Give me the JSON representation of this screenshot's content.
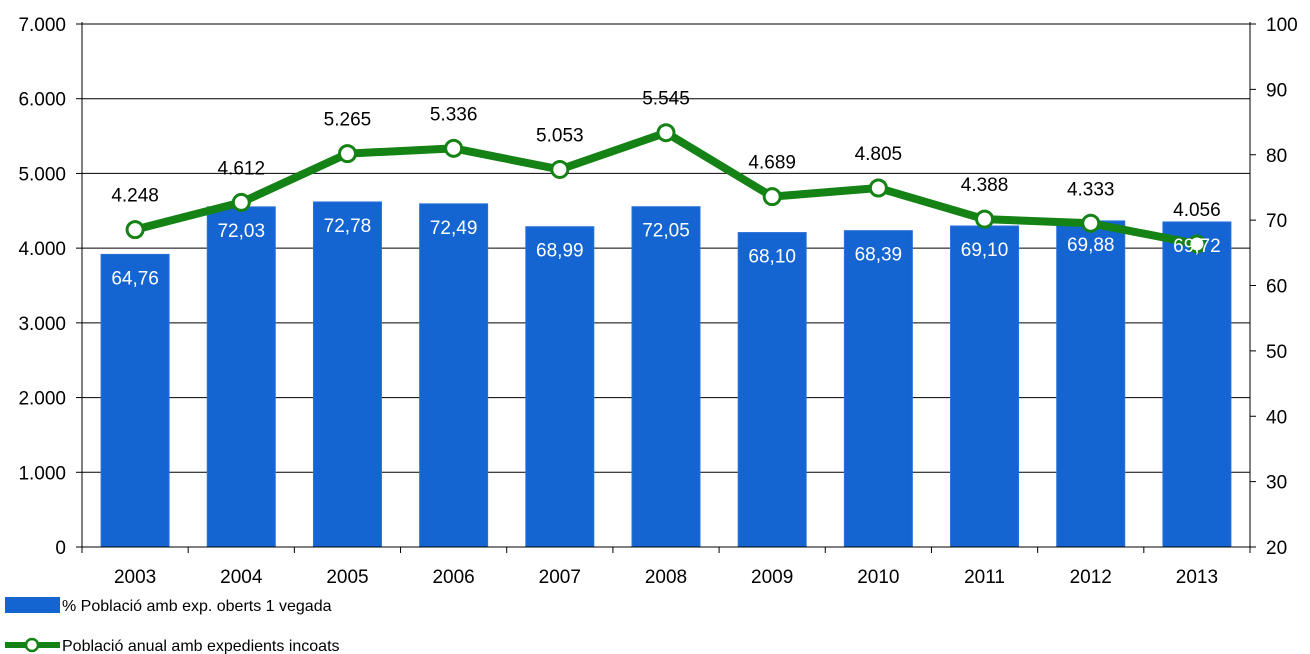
{
  "chart_data": {
    "type": "bar+line",
    "categories": [
      "2003",
      "2004",
      "2005",
      "2006",
      "2007",
      "2008",
      "2009",
      "2010",
      "2011",
      "2012",
      "2013"
    ],
    "series": [
      {
        "name": "% Població amb exp. oberts 1 vegada",
        "type": "bar",
        "axis": "left",
        "color": "#1464d2",
        "values": [
          64.76,
          72.03,
          72.78,
          72.49,
          68.99,
          72.05,
          68.1,
          68.39,
          69.1,
          69.88,
          69.72
        ],
        "labels": [
          "64,76",
          "72,03",
          "72,78",
          "72,49",
          "68,99",
          "72,05",
          "68,10",
          "68,39",
          "69,10",
          "69,88",
          "69,72"
        ]
      },
      {
        "name": "Població anual amb expedients incoats",
        "type": "line",
        "axis": "right",
        "color": "#148214",
        "values": [
          4248,
          4612,
          5265,
          5336,
          5053,
          5545,
          4689,
          4805,
          4388,
          4333,
          4056
        ],
        "labels": [
          "4.248",
          "4.612",
          "5.265",
          "5.336",
          "5.053",
          "5.545",
          "4.689",
          "4.805",
          "4.388",
          "4.333",
          "4.056"
        ]
      }
    ],
    "left_axis": {
      "range": [
        0,
        7000
      ],
      "ticks": [
        0,
        1000,
        2000,
        3000,
        4000,
        5000,
        6000,
        7000
      ],
      "tick_labels": [
        "0",
        "1.000",
        "2.000",
        "3.000",
        "4.000",
        "5.000",
        "6.000",
        "7.000"
      ]
    },
    "right_axis": {
      "range": [
        20,
        100
      ],
      "ticks": [
        20,
        30,
        40,
        50,
        60,
        70,
        80,
        90,
        100
      ],
      "tick_labels": [
        "20",
        "30",
        "40",
        "50",
        "60",
        "70",
        "80",
        "90",
        "100"
      ]
    },
    "grid": true,
    "legend_position": "bottom-left",
    "title": "",
    "xlabel": "",
    "ylabel": ""
  }
}
